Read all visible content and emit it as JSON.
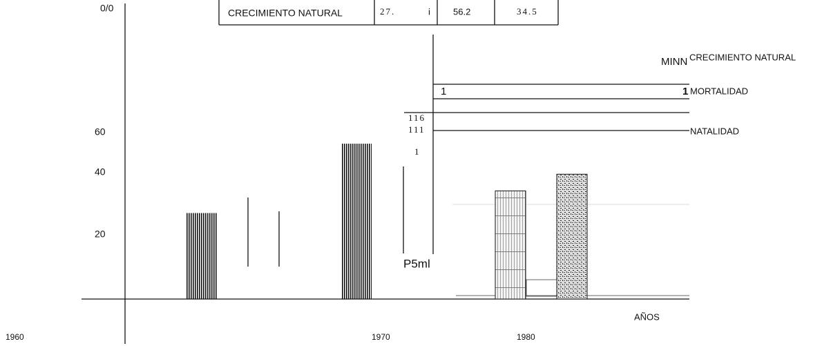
{
  "chart_data": {
    "type": "bar",
    "y_label": "0/0",
    "x_label": "AÑOS",
    "year_labels": [
      "1960",
      "1970",
      "1980"
    ],
    "table_row": [
      "CRECIMIENTO NATURAL",
      "27.",
      "i",
      "56.2",
      "34.5"
    ],
    "legend": [
      "CRECIMIENTO NATURAL",
      "MORTALIDAD",
      "NATALIDAD"
    ],
    "marks": [
      "MINN",
      "1",
      "1",
      "116",
      "111",
      "1",
      "P5ml"
    ],
    "categories": [
      null,
      null,
      null,
      null
    ],
    "values": [
      31,
      56,
      39,
      45
    ],
    "color": "#111111",
    "ylim": [
      0,
      60
    ],
    "yticks": [
      20,
      40,
      60
    ]
  }
}
